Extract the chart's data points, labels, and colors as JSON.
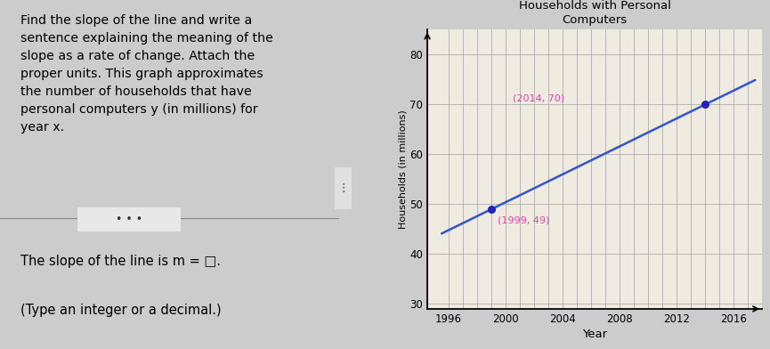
{
  "title": "Households with Personal\nComputers",
  "xlabel": "Year",
  "ylabel": "Households (in millions)",
  "xlim": [
    1994.5,
    2018
  ],
  "ylim": [
    29,
    85
  ],
  "xticks": [
    1996,
    2000,
    2004,
    2008,
    2012,
    2016
  ],
  "yticks": [
    30,
    40,
    50,
    60,
    70,
    80
  ],
  "grid_x": [
    1996,
    1997,
    1998,
    1999,
    2000,
    2001,
    2002,
    2003,
    2004,
    2005,
    2006,
    2007,
    2008,
    2009,
    2010,
    2011,
    2012,
    2013,
    2014,
    2015,
    2016,
    2017
  ],
  "line_x_start": 1995.5,
  "line_x_end": 2017.5,
  "point1": [
    1999,
    49
  ],
  "point2": [
    2014,
    70
  ],
  "point_color": "#2222bb",
  "line_color": "#3355cc",
  "label_color": "#dd44aa",
  "label1": "(1999, 49)",
  "label2": "(2014, 70)",
  "bg_color": "#f0ebe0",
  "left_panel_bg": "#cccccc",
  "right_panel_bg": "#cccccc",
  "question_lines": [
    "Find the slope of the line and write a",
    "sentence explaining the meaning of the",
    "slope as a rate of change. Attach the",
    "proper units. This graph approximates",
    "the number of households that have",
    "personal computers y (in millions) for",
    "year x."
  ],
  "slope_text1": "The slope of the line is m = □.",
  "slope_text2": "(Type an integer or a decimal.)"
}
